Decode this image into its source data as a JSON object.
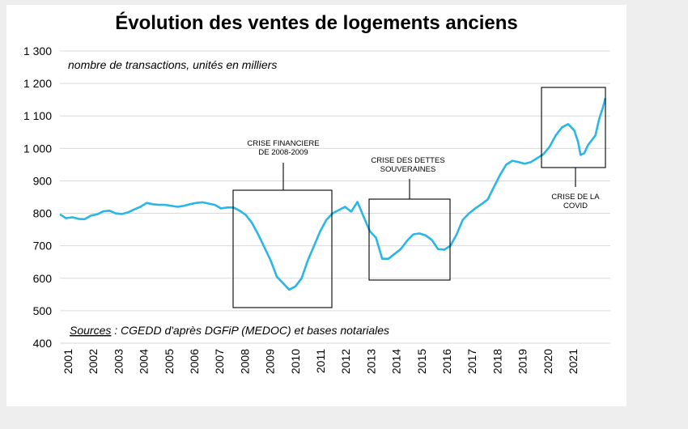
{
  "chart_data": {
    "type": "line",
    "title": "Évolution des ventes de logements anciens",
    "subtitle": "nombre de transactions, unités en milliers",
    "source_label": "Sources",
    "source_text": " : CGEDD d'après DGFiP (MEDOC) et bases notariales",
    "ylim": [
      400,
      1300
    ],
    "yticks": [
      400,
      500,
      600,
      700,
      800,
      900,
      1000,
      1100,
      1200,
      1300
    ],
    "ytick_labels": [
      "400",
      "500",
      "600",
      "700",
      "800",
      "900",
      "1 000",
      "1 100",
      "1 200",
      "1 300"
    ],
    "xlim": [
      2001.0,
      2022.0
    ],
    "xtick_labels": [
      "2001",
      "2002",
      "2003",
      "2004",
      "2005",
      "2006",
      "2007",
      "2008",
      "2009",
      "2010",
      "2011",
      "2012",
      "2013",
      "2014",
      "2015",
      "2016",
      "2017",
      "2018",
      "2019",
      "2020",
      "2021"
    ],
    "grid": true,
    "color": "#29b6e8",
    "series": [
      {
        "points": [
          [
            2001.0,
            797
          ],
          [
            2001.25,
            785
          ],
          [
            2001.5,
            788
          ],
          [
            2001.75,
            783
          ],
          [
            2002.0,
            782
          ],
          [
            2002.25,
            793
          ],
          [
            2002.5,
            797
          ],
          [
            2002.75,
            806
          ],
          [
            2003.0,
            808
          ],
          [
            2003.25,
            800
          ],
          [
            2003.5,
            798
          ],
          [
            2003.75,
            803
          ],
          [
            2004.0,
            812
          ],
          [
            2004.25,
            820
          ],
          [
            2004.5,
            832
          ],
          [
            2004.75,
            828
          ],
          [
            2005.0,
            826
          ],
          [
            2005.25,
            826
          ],
          [
            2005.5,
            823
          ],
          [
            2005.75,
            820
          ],
          [
            2006.0,
            823
          ],
          [
            2006.25,
            828
          ],
          [
            2006.5,
            832
          ],
          [
            2006.75,
            834
          ],
          [
            2007.0,
            830
          ],
          [
            2007.25,
            826
          ],
          [
            2007.5,
            815
          ],
          [
            2007.75,
            818
          ],
          [
            2008.0,
            818
          ],
          [
            2008.25,
            808
          ],
          [
            2008.5,
            795
          ],
          [
            2008.75,
            770
          ],
          [
            2009.0,
            735
          ],
          [
            2009.25,
            695
          ],
          [
            2009.5,
            655
          ],
          [
            2009.75,
            605
          ],
          [
            2010.0,
            585
          ],
          [
            2010.25,
            565
          ],
          [
            2010.5,
            575
          ],
          [
            2010.75,
            600
          ],
          [
            2011.0,
            655
          ],
          [
            2011.25,
            700
          ],
          [
            2011.5,
            745
          ],
          [
            2011.75,
            780
          ],
          [
            2012.0,
            800
          ],
          [
            2012.25,
            810
          ],
          [
            2012.5,
            820
          ],
          [
            2012.75,
            805
          ],
          [
            2013.0,
            835
          ],
          [
            2013.25,
            790
          ],
          [
            2013.5,
            745
          ],
          [
            2013.75,
            725
          ],
          [
            2014.0,
            660
          ],
          [
            2014.25,
            660
          ],
          [
            2014.5,
            675
          ],
          [
            2014.75,
            690
          ],
          [
            2015.0,
            715
          ],
          [
            2015.25,
            735
          ],
          [
            2015.5,
            738
          ],
          [
            2015.75,
            732
          ],
          [
            2016.0,
            718
          ],
          [
            2016.25,
            690
          ],
          [
            2016.5,
            688
          ],
          [
            2016.75,
            700
          ],
          [
            2017.0,
            735
          ],
          [
            2017.25,
            780
          ],
          [
            2017.5,
            800
          ],
          [
            2017.75,
            815
          ],
          [
            2018.0,
            828
          ],
          [
            2018.25,
            842
          ],
          [
            2018.5,
            880
          ],
          [
            2018.75,
            918
          ],
          [
            2019.0,
            950
          ],
          [
            2019.25,
            962
          ],
          [
            2019.5,
            958
          ],
          [
            2019.75,
            953
          ],
          [
            2020.0,
            958
          ],
          [
            2020.25,
            970
          ],
          [
            2020.5,
            982
          ],
          [
            2020.75,
            1005
          ],
          [
            2021.0,
            1040
          ],
          [
            2021.25,
            1065
          ],
          [
            2021.5,
            1075
          ],
          [
            2021.75,
            1055
          ],
          [
            2021.9,
            1020
          ],
          [
            2022.0,
            980
          ],
          [
            2022.15,
            985
          ],
          [
            2022.3,
            1010
          ],
          [
            2022.45,
            1025
          ],
          [
            2022.6,
            1040
          ],
          [
            2022.75,
            1090
          ],
          [
            2022.9,
            1125
          ],
          [
            2023.0,
            1155
          ]
        ]
      }
    ],
    "annotations": [
      {
        "lines": [
          "CRISE FINANCIERE",
          "DE 2008-2009"
        ]
      },
      {
        "lines": [
          "CRISE DES DETTES",
          "SOUVERAINES"
        ]
      },
      {
        "lines": [
          "CRISE DE LA",
          "COVID"
        ]
      }
    ]
  }
}
